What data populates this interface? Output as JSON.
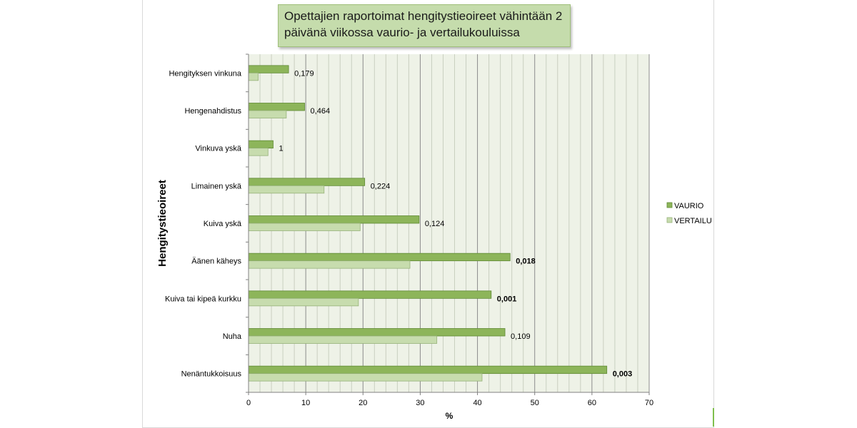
{
  "chart_data": {
    "type": "bar",
    "orientation": "horizontal",
    "title": "Opettajien raportoimat hengitystieoireet vähintään 2 päivänä viikossa vaurio- ja vertailukouluissa",
    "xlabel": "%",
    "ylabel": "Hengitystieoireet",
    "xlim": [
      0,
      70
    ],
    "xticks": [
      0,
      10,
      20,
      30,
      40,
      50,
      60,
      70
    ],
    "grid": true,
    "legend_position": "right",
    "categories": [
      "Hengityksen vinkuna",
      "Hengenahdistus",
      "Vinkuva yskä",
      "Limainen yskä",
      "Kuiva yskä",
      "Äänen käheys",
      "Kuiva tai kipeä kurkku",
      "Nuha",
      "Nenäntukkoisuus"
    ],
    "series": [
      {
        "name": "VAURIO",
        "color": "#8db55a",
        "values": [
          7.0,
          9.8,
          4.3,
          20.3,
          29.8,
          45.7,
          42.4,
          44.8,
          62.6
        ]
      },
      {
        "name": "VERTAILU",
        "color": "#c7dcae",
        "values": [
          1.7,
          6.6,
          3.4,
          13.2,
          19.5,
          28.2,
          19.2,
          32.9,
          40.8
        ]
      }
    ],
    "annotations": [
      {
        "label": "0,179",
        "bold": false
      },
      {
        "label": "0,464",
        "bold": false
      },
      {
        "label": "1",
        "bold": false
      },
      {
        "label": "0,224",
        "bold": false
      },
      {
        "label": "0,124",
        "bold": false
      },
      {
        "label": "0,018",
        "bold": true
      },
      {
        "label": "0,001",
        "bold": true
      },
      {
        "label": "0,109",
        "bold": false
      },
      {
        "label": "0,003",
        "bold": true
      }
    ]
  }
}
